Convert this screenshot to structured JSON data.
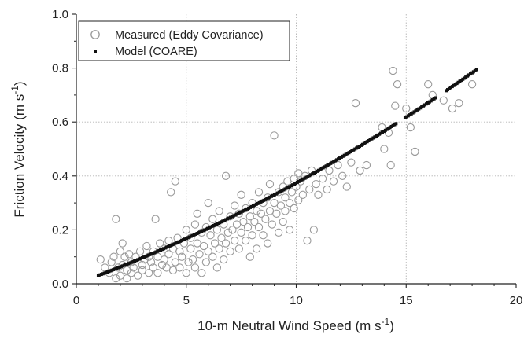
{
  "chart_data": {
    "type": "scatter",
    "xlabel": "10-m Neutral Wind Speed (m s",
    "xlabel_exp": "-1",
    "xlabel_close": ")",
    "ylabel": "Friction Velocity (m s",
    "ylabel_exp": "-1",
    "ylabel_close": ")",
    "xlim": [
      0,
      20
    ],
    "ylim": [
      0,
      1.0
    ],
    "xticks": [
      0,
      5,
      10,
      15,
      20
    ],
    "xtick_labels": [
      "0",
      "5",
      "10",
      "15",
      "20"
    ],
    "yticks": [
      0,
      0.2,
      0.4,
      0.6,
      0.8,
      1.0
    ],
    "ytick_labels": [
      "0.0",
      "0.2",
      "0.4",
      "0.6",
      "0.8",
      "1.0"
    ],
    "grid": true,
    "legend_position": "top-left",
    "colors": {
      "measured": "#9a9a9a",
      "model": "#111111",
      "grid": "#b4b4b4",
      "axis": "#222222"
    },
    "series": [
      {
        "name": "Measured (Eddy Covariance)",
        "marker": "open-circle",
        "points": [
          [
            1.1,
            0.09
          ],
          [
            1.3,
            0.06
          ],
          [
            1.5,
            0.04
          ],
          [
            1.6,
            0.08
          ],
          [
            1.7,
            0.1
          ],
          [
            1.8,
            0.02
          ],
          [
            1.8,
            0.24
          ],
          [
            1.9,
            0.06
          ],
          [
            2.0,
            0.12
          ],
          [
            2.0,
            0.03
          ],
          [
            2.1,
            0.15
          ],
          [
            2.1,
            0.07
          ],
          [
            2.2,
            0.1
          ],
          [
            2.3,
            0.02
          ],
          [
            2.3,
            0.05
          ],
          [
            2.4,
            0.11
          ],
          [
            2.5,
            0.04
          ],
          [
            2.5,
            0.08
          ],
          [
            2.6,
            0.06
          ],
          [
            2.7,
            0.1
          ],
          [
            2.8,
            0.03
          ],
          [
            2.9,
            0.12
          ],
          [
            3.0,
            0.07
          ],
          [
            3.0,
            0.05
          ],
          [
            3.1,
            0.09
          ],
          [
            3.2,
            0.14
          ],
          [
            3.3,
            0.04
          ],
          [
            3.3,
            0.1
          ],
          [
            3.4,
            0.08
          ],
          [
            3.5,
            0.12
          ],
          [
            3.5,
            0.06
          ],
          [
            3.6,
            0.24
          ],
          [
            3.7,
            0.1
          ],
          [
            3.7,
            0.04
          ],
          [
            3.8,
            0.15
          ],
          [
            3.9,
            0.07
          ],
          [
            4.0,
            0.13
          ],
          [
            4.0,
            0.09
          ],
          [
            4.1,
            0.06
          ],
          [
            4.2,
            0.16
          ],
          [
            4.2,
            0.11
          ],
          [
            4.3,
            0.34
          ],
          [
            4.4,
            0.05
          ],
          [
            4.4,
            0.13
          ],
          [
            4.5,
            0.38
          ],
          [
            4.5,
            0.08
          ],
          [
            4.6,
            0.17
          ],
          [
            4.7,
            0.12
          ],
          [
            4.7,
            0.06
          ],
          [
            4.8,
            0.1
          ],
          [
            4.9,
            0.15
          ],
          [
            5.0,
            0.04
          ],
          [
            5.0,
            0.2
          ],
          [
            5.1,
            0.08
          ],
          [
            5.2,
            0.13
          ],
          [
            5.2,
            0.17
          ],
          [
            5.3,
            0.09
          ],
          [
            5.4,
            0.22
          ],
          [
            5.4,
            0.06
          ],
          [
            5.5,
            0.15
          ],
          [
            5.5,
            0.26
          ],
          [
            5.6,
            0.11
          ],
          [
            5.7,
            0.19
          ],
          [
            5.7,
            0.04
          ],
          [
            5.8,
            0.14
          ],
          [
            5.9,
            0.21
          ],
          [
            5.9,
            0.08
          ],
          [
            6.0,
            0.3
          ],
          [
            6.0,
            0.12
          ],
          [
            6.1,
            0.18
          ],
          [
            6.2,
            0.1
          ],
          [
            6.2,
            0.24
          ],
          [
            6.3,
            0.15
          ],
          [
            6.4,
            0.06
          ],
          [
            6.4,
            0.2
          ],
          [
            6.5,
            0.13
          ],
          [
            6.5,
            0.27
          ],
          [
            6.6,
            0.17
          ],
          [
            6.7,
            0.09
          ],
          [
            6.7,
            0.22
          ],
          [
            6.8,
            0.4
          ],
          [
            6.8,
            0.15
          ],
          [
            6.9,
            0.19
          ],
          [
            7.0,
            0.12
          ],
          [
            7.0,
            0.25
          ],
          [
            7.1,
            0.2
          ],
          [
            7.2,
            0.16
          ],
          [
            7.2,
            0.29
          ],
          [
            7.3,
            0.22
          ],
          [
            7.4,
            0.13
          ],
          [
            7.4,
            0.26
          ],
          [
            7.5,
            0.19
          ],
          [
            7.5,
            0.33
          ],
          [
            7.6,
            0.23
          ],
          [
            7.7,
            0.16
          ],
          [
            7.7,
            0.28
          ],
          [
            7.8,
            0.21
          ],
          [
            7.9,
            0.1
          ],
          [
            7.9,
            0.25
          ],
          [
            8.0,
            0.3
          ],
          [
            8.0,
            0.18
          ],
          [
            8.1,
            0.23
          ],
          [
            8.2,
            0.27
          ],
          [
            8.2,
            0.13
          ],
          [
            8.3,
            0.34
          ],
          [
            8.3,
            0.21
          ],
          [
            8.4,
            0.26
          ],
          [
            8.5,
            0.18
          ],
          [
            8.5,
            0.3
          ],
          [
            8.6,
            0.24
          ],
          [
            8.7,
            0.32
          ],
          [
            8.7,
            0.15
          ],
          [
            8.8,
            0.27
          ],
          [
            8.8,
            0.37
          ],
          [
            8.9,
            0.22
          ],
          [
            9.0,
            0.3
          ],
          [
            9.0,
            0.55
          ],
          [
            9.1,
            0.26
          ],
          [
            9.2,
            0.34
          ],
          [
            9.2,
            0.19
          ],
          [
            9.3,
            0.29
          ],
          [
            9.4,
            0.36
          ],
          [
            9.4,
            0.23
          ],
          [
            9.5,
            0.32
          ],
          [
            9.5,
            0.27
          ],
          [
            9.6,
            0.38
          ],
          [
            9.7,
            0.3
          ],
          [
            9.7,
            0.2
          ],
          [
            9.8,
            0.34
          ],
          [
            9.9,
            0.39
          ],
          [
            9.9,
            0.28
          ],
          [
            10.0,
            0.36
          ],
          [
            10.1,
            0.41
          ],
          [
            10.1,
            0.31
          ],
          [
            10.2,
            0.38
          ],
          [
            10.3,
            0.33
          ],
          [
            10.4,
            0.4
          ],
          [
            10.5,
            0.16
          ],
          [
            10.6,
            0.35
          ],
          [
            10.7,
            0.42
          ],
          [
            10.8,
            0.2
          ],
          [
            10.9,
            0.37
          ],
          [
            11.0,
            0.33
          ],
          [
            11.2,
            0.39
          ],
          [
            11.4,
            0.35
          ],
          [
            11.5,
            0.42
          ],
          [
            11.7,
            0.38
          ],
          [
            11.9,
            0.44
          ],
          [
            12.1,
            0.4
          ],
          [
            12.3,
            0.36
          ],
          [
            12.5,
            0.45
          ],
          [
            12.7,
            0.67
          ],
          [
            12.9,
            0.42
          ],
          [
            13.2,
            0.44
          ],
          [
            13.9,
            0.58
          ],
          [
            14.0,
            0.5
          ],
          [
            14.2,
            0.56
          ],
          [
            14.3,
            0.44
          ],
          [
            14.4,
            0.79
          ],
          [
            14.5,
            0.66
          ],
          [
            14.6,
            0.74
          ],
          [
            15.0,
            0.65
          ],
          [
            15.2,
            0.58
          ],
          [
            15.4,
            0.49
          ],
          [
            16.0,
            0.74
          ],
          [
            16.2,
            0.7
          ],
          [
            16.7,
            0.68
          ],
          [
            17.1,
            0.65
          ],
          [
            17.4,
            0.67
          ],
          [
            18.0,
            0.74
          ]
        ]
      },
      {
        "name": "Model (COARE)",
        "marker": "filled-square",
        "curve": {
          "x_start": 1.0,
          "x_end": 18.2,
          "points": 250,
          "coefficients": [
            0.0,
            0.0298,
            0.00076
          ]
        },
        "x_gaps": [
          [
            14.6,
            14.9
          ],
          [
            16.4,
            16.8
          ]
        ]
      }
    ]
  }
}
